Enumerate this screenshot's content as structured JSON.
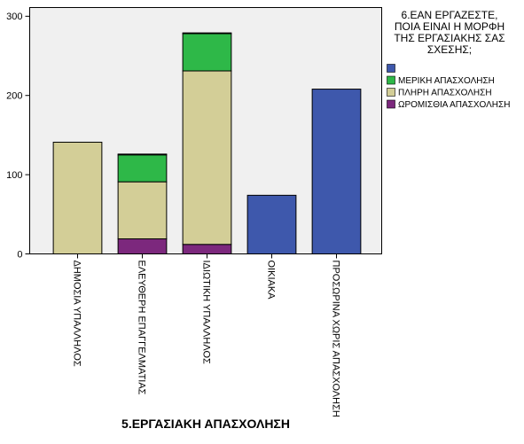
{
  "chart_data": {
    "type": "bar",
    "stacked": true,
    "categories": [
      "ΔΗΜΟΣΙΑ ΥΠΑΛΛΗΛΟΣ",
      "ΕΛΕΥΘΕΡΗ ΕΠΑΓΓΕΛΜΑΤΙΑΣ",
      "ΙΔΙΩΤΙΚΗ ΥΠΑΛΛΗΛΟΣ",
      "ΟΙΚΙΑΚΑ",
      "ΠΡΟΣΩΡΙΝΑ ΧΩΡΙΣ ΑΠΑΣΧΟΛΗΣΗ"
    ],
    "series": [
      {
        "name": "",
        "color": "#3E58AC",
        "values": [
          0,
          1,
          1,
          74,
          208
        ]
      },
      {
        "name": "ΜΕΡΙΚΗ ΑΠΑΣΧΟΛΗΣΗ",
        "color": "#2EB848",
        "values": [
          0,
          34,
          47,
          0,
          0
        ]
      },
      {
        "name": "ΠΛΗΡΗ ΑΠΑΣΧΟΛΗΣΗ",
        "color": "#D3CE97",
        "values": [
          141,
          72,
          219,
          0,
          0
        ]
      },
      {
        "name": "ΩΡΟΜΙΣΘΙΑ ΑΠΑΣΧΟΛΗΣΗ",
        "color": "#7C287D",
        "values": [
          0,
          19,
          12,
          0,
          0
        ]
      }
    ],
    "title": "",
    "xlabel": "5.ΕΡΓΑΣΙΑΚΗ ΑΠΑΣΧΟΛΗΣΗ",
    "ylabel": "",
    "ylim": [
      0,
      311
    ],
    "yticks": [
      0,
      100,
      200,
      300
    ],
    "grid": false,
    "background": "#F0F0F0",
    "legend": {
      "placement": "right",
      "title_lines": [
        "6.ΕΑΝ ΕΡΓΑΖΕΣΤΕ,",
        "ΠΟΙΑ ΕΙΝΑΙ Η ΜΟΡΦΗ",
        "ΤΗΣ ΕΡΓΑΣΙΑΚΗΣ ΣΑΣ",
        "ΣΧΕΣΗΣ;"
      ]
    }
  }
}
